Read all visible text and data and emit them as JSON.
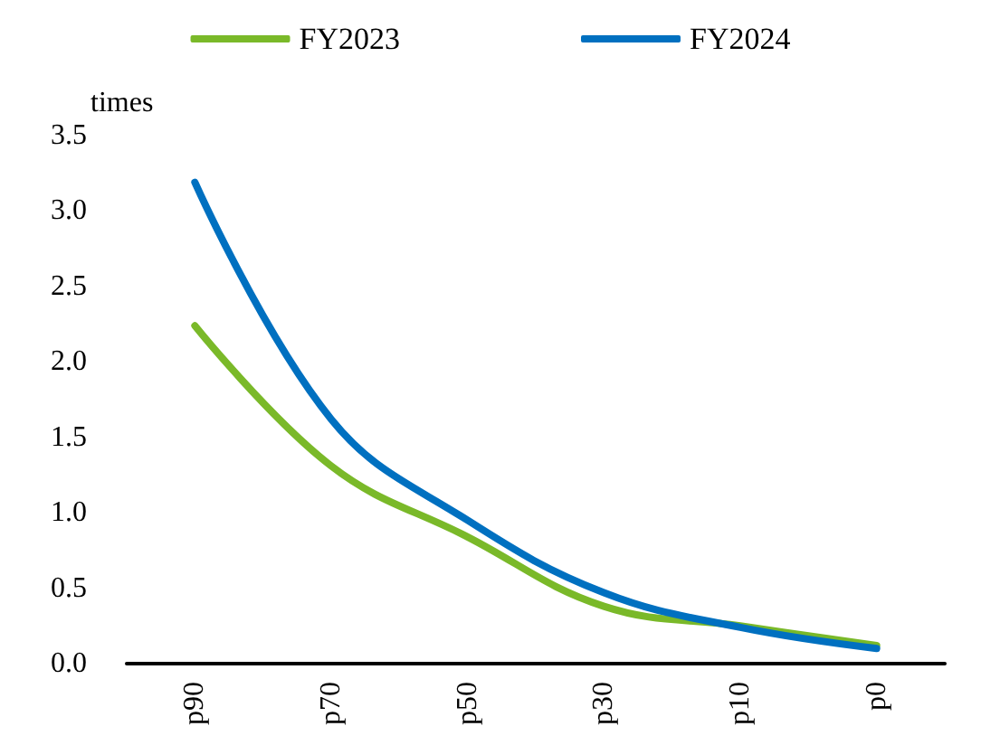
{
  "chart_data": {
    "type": "line",
    "ylabel": "times",
    "categories": [
      "p90",
      "p70",
      "p50",
      "p30",
      "p10",
      "p0"
    ],
    "series": [
      {
        "name": "FY2023",
        "color": "#7ab929",
        "values": [
          2.24,
          1.31,
          0.84,
          0.38,
          0.25,
          0.12
        ]
      },
      {
        "name": "FY2024",
        "color": "#0070c0",
        "values": [
          3.19,
          1.62,
          0.95,
          0.47,
          0.24,
          0.1
        ]
      }
    ],
    "ylim": [
      0,
      3.5
    ],
    "yticks": [
      {
        "value": 0,
        "label": "0.0"
      },
      0.5,
      {
        "value": 1,
        "label": "1.0"
      },
      1.5,
      {
        "value": 2,
        "label": "2.0"
      },
      2.5,
      {
        "value": 3,
        "label": "3.0"
      },
      3.5
    ],
    "grid": false,
    "legend": "top",
    "marker": "none",
    "line_style": "solid"
  }
}
